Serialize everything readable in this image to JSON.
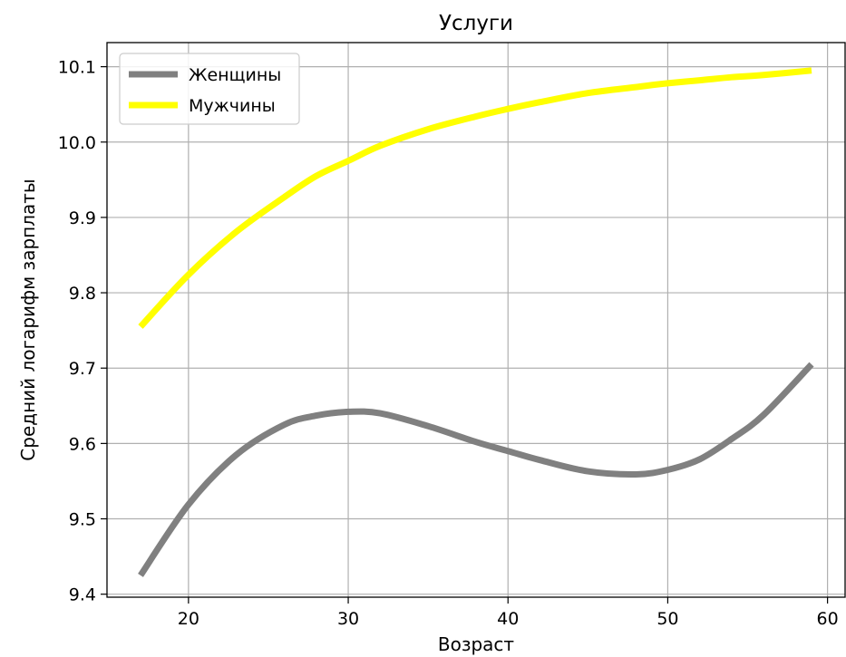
{
  "chart_data": {
    "type": "line",
    "title": "Услуги",
    "xlabel": "Возраст",
    "ylabel": "Средний логарифм зарплаты",
    "xlim": [
      14.9,
      61.1
    ],
    "ylim": [
      9.396,
      10.132
    ],
    "xticks": [
      20,
      30,
      40,
      50,
      60
    ],
    "yticks": [
      9.4,
      9.5,
      9.6,
      9.7,
      9.8,
      9.9,
      10.0,
      10.1
    ],
    "ytick_labels": [
      "9.4",
      "9.5",
      "9.6",
      "9.7",
      "9.8",
      "9.9",
      "10.0",
      "10.1"
    ],
    "grid": true,
    "legend_position": "top-left",
    "series": [
      {
        "name": "Женщины",
        "color": "#808080",
        "x": [
          17,
          20,
          23,
          26,
          28,
          30,
          32,
          35,
          38,
          40,
          42,
          45,
          48,
          50,
          52,
          54,
          56,
          59
        ],
        "y": [
          9.425,
          9.519,
          9.585,
          9.625,
          9.637,
          9.642,
          9.64,
          9.623,
          9.602,
          9.59,
          9.578,
          9.563,
          9.559,
          9.565,
          9.579,
          9.606,
          9.638,
          9.705
        ]
      },
      {
        "name": "Мужчины",
        "color": "#ffff00",
        "x": [
          17,
          20,
          23,
          26,
          28,
          30,
          32,
          35,
          38,
          40,
          42,
          45,
          48,
          50,
          52,
          54,
          56,
          59
        ],
        "y": [
          9.755,
          9.824,
          9.881,
          9.927,
          9.955,
          9.975,
          9.995,
          10.017,
          10.034,
          10.044,
          10.053,
          10.065,
          10.073,
          10.078,
          10.082,
          10.086,
          10.089,
          10.095
        ]
      }
    ]
  }
}
